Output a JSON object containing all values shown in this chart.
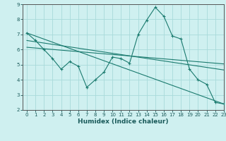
{
  "xlabel": "Humidex (Indice chaleur)",
  "bg_color": "#cff0f0",
  "line_color": "#1a7a6e",
  "grid_color": "#a8dada",
  "line1_x": [
    0,
    1,
    2,
    3,
    4,
    5,
    6,
    7,
    8,
    9,
    10,
    11,
    12,
    13,
    14,
    15,
    16,
    17,
    18,
    19,
    20,
    21,
    22,
    23
  ],
  "line1_y": [
    7.1,
    6.6,
    6.0,
    5.4,
    4.7,
    5.2,
    4.9,
    3.5,
    4.0,
    4.5,
    5.5,
    5.4,
    5.1,
    7.0,
    7.95,
    8.8,
    8.2,
    6.9,
    6.7,
    4.7,
    4.0,
    3.7,
    2.5,
    2.4
  ],
  "line2_x": [
    0,
    23
  ],
  "line2_y": [
    7.1,
    2.4
  ],
  "line3_x": [
    0,
    23
  ],
  "line3_y": [
    6.6,
    4.65
  ],
  "line4_x": [
    0,
    23
  ],
  "line4_y": [
    6.15,
    5.05
  ],
  "xlim": [
    -0.5,
    23
  ],
  "ylim": [
    2,
    9
  ],
  "xticks": [
    0,
    1,
    2,
    3,
    4,
    5,
    6,
    7,
    8,
    9,
    10,
    11,
    12,
    13,
    14,
    15,
    16,
    17,
    18,
    19,
    20,
    21,
    22,
    23
  ],
  "yticks": [
    2,
    3,
    4,
    5,
    6,
    7,
    8,
    9
  ]
}
